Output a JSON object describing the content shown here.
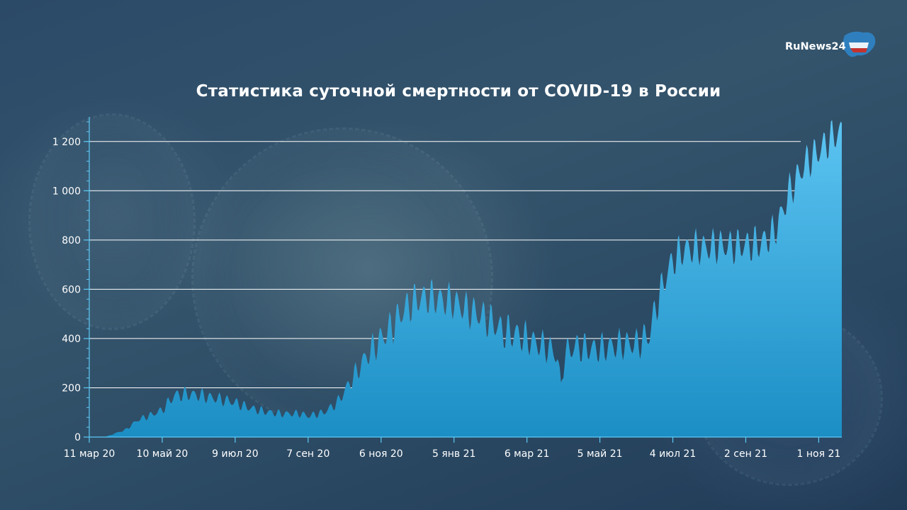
{
  "brand": {
    "logo_text": "RuNews24"
  },
  "colors": {
    "area_top": "#5cc4f2",
    "area_bottom": "#1b8ec4",
    "grid": "#ffffff",
    "axis": "#5cc9f5",
    "text": "#ffffff"
  },
  "chart_data": {
    "type": "area",
    "title": "Статистика суточной смертности от COVID-19 в России",
    "xlabel": "",
    "ylabel": "",
    "ylim": [
      0,
      1300
    ],
    "grid": true,
    "yticks": [
      0,
      200,
      400,
      600,
      800,
      1000,
      1200
    ],
    "ytick_labels": [
      "0",
      "200",
      "400",
      "600",
      "800",
      "1 000",
      "1 200"
    ],
    "xlim": [
      "2020-03-11",
      "2021-11-20"
    ],
    "xticks": [
      "2020-03-11",
      "2020-05-10",
      "2020-07-09",
      "2020-09-07",
      "2020-11-06",
      "2021-01-05",
      "2021-03-06",
      "2021-05-05",
      "2021-07-04",
      "2021-09-02",
      "2021-11-01"
    ],
    "xtick_labels": [
      "11 мар 20",
      "10 май 20",
      "9 июл 20",
      "7 сен 20",
      "6 ноя 20",
      "5 янв 21",
      "6 мар 21",
      "5 май 21",
      "4 июл 21",
      "2 сен 21",
      "1 ноя 21"
    ],
    "series": [
      {
        "x": [
          "2020-03-11",
          "2020-03-25",
          "2020-04-10",
          "2020-04-20",
          "2020-05-01",
          "2020-05-10",
          "2020-05-20",
          "2020-05-31",
          "2020-06-10",
          "2020-06-20",
          "2020-07-01",
          "2020-07-09",
          "2020-07-20",
          "2020-08-01",
          "2020-08-15",
          "2020-09-01",
          "2020-09-07",
          "2020-09-20",
          "2020-10-01",
          "2020-10-15",
          "2020-10-25",
          "2020-11-06",
          "2020-11-15",
          "2020-11-25",
          "2020-12-05",
          "2020-12-15",
          "2020-12-24",
          "2021-01-05",
          "2021-01-15",
          "2021-01-25",
          "2021-02-05",
          "2021-02-15",
          "2021-02-25",
          "2021-03-06",
          "2021-03-15",
          "2021-03-25",
          "2021-03-31",
          "2021-04-03",
          "2021-04-06",
          "2021-04-15",
          "2021-04-25",
          "2021-05-05",
          "2021-05-15",
          "2021-05-25",
          "2021-06-05",
          "2021-06-15",
          "2021-06-20",
          "2021-06-28",
          "2021-07-04",
          "2021-07-12",
          "2021-07-22",
          "2021-08-01",
          "2021-08-10",
          "2021-08-20",
          "2021-09-02",
          "2021-09-15",
          "2021-09-25",
          "2021-10-01",
          "2021-10-08",
          "2021-10-15",
          "2021-10-22",
          "2021-11-01",
          "2021-11-10",
          "2021-11-15",
          "2021-11-20"
        ],
        "values": [
          0,
          2,
          30,
          70,
          90,
          110,
          170,
          175,
          170,
          160,
          150,
          140,
          120,
          105,
          95,
          95,
          85,
          100,
          140,
          250,
          330,
          400,
          450,
          520,
          560,
          570,
          560,
          550,
          520,
          500,
          470,
          430,
          420,
          400,
          380,
          360,
          330,
          200,
          340,
          370,
          360,
          360,
          370,
          380,
          380,
          420,
          530,
          650,
          720,
          760,
          770,
          770,
          780,
          775,
          780,
          790,
          830,
          900,
          1000,
          1060,
          1120,
          1160,
          1210,
          1230,
          1240
        ]
      }
    ]
  }
}
